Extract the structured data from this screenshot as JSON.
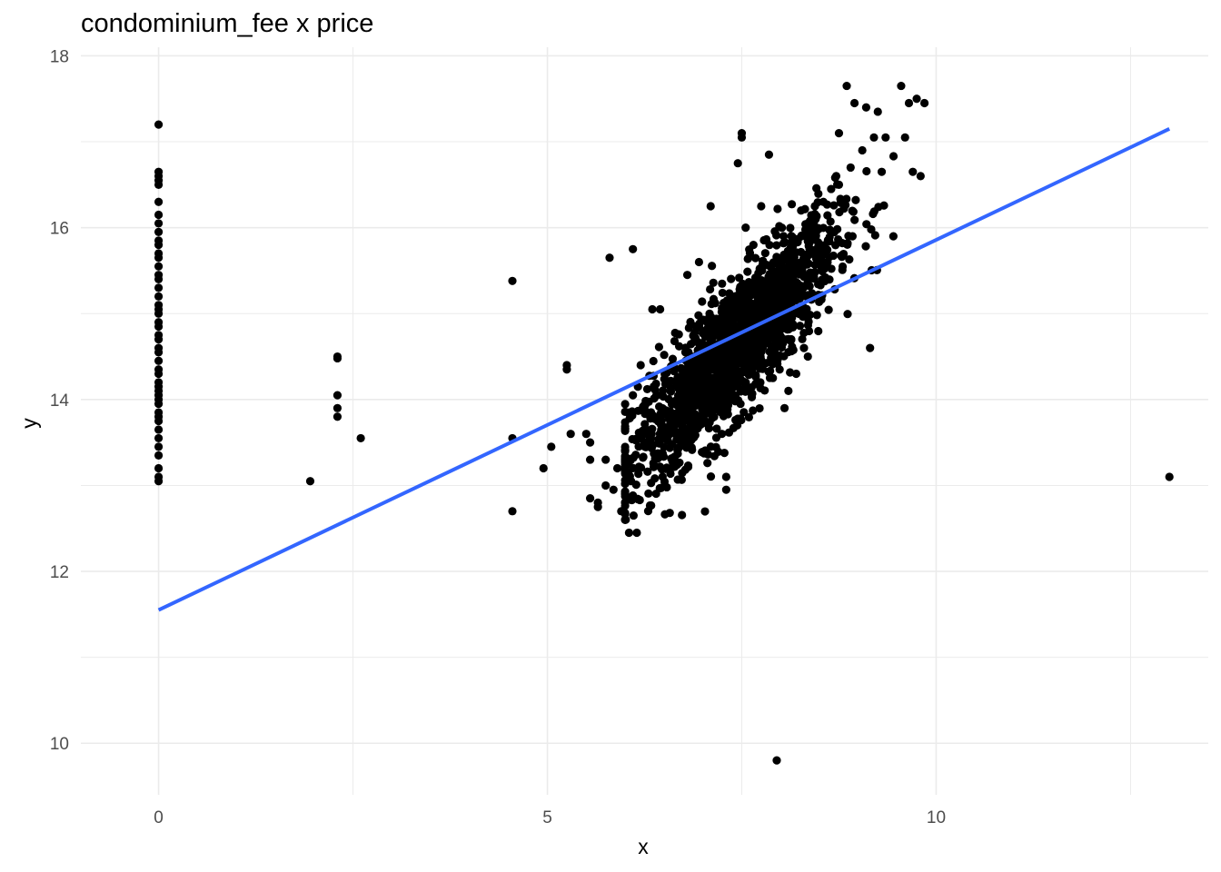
{
  "chart_data": {
    "type": "scatter",
    "title": "condominium_fee x price",
    "xlabel": "x",
    "ylabel": "y",
    "xlim": [
      -1.0,
      13.5
    ],
    "ylim": [
      9.4,
      18.1
    ],
    "x_ticks": [
      0,
      5,
      10
    ],
    "y_ticks": [
      10,
      12,
      14,
      16,
      18
    ],
    "grid": true,
    "legend": "none",
    "colors": {
      "points": "#000000",
      "fit_line": "#3366ff",
      "grid": "#ebebeb",
      "background": "#ffffff"
    },
    "fit_line": {
      "x": [
        0,
        13
      ],
      "y": [
        11.55,
        17.15
      ]
    },
    "points": [
      [
        0,
        13.05
      ],
      [
        0,
        13.1
      ],
      [
        0,
        13.2
      ],
      [
        0,
        13.35
      ],
      [
        0,
        13.45
      ],
      [
        0,
        13.55
      ],
      [
        0,
        13.65
      ],
      [
        0,
        13.75
      ],
      [
        0,
        13.8
      ],
      [
        0,
        13.85
      ],
      [
        0,
        13.95
      ],
      [
        0,
        14.0
      ],
      [
        0,
        14.05
      ],
      [
        0,
        14.1
      ],
      [
        0,
        14.15
      ],
      [
        0,
        14.2
      ],
      [
        0,
        14.3
      ],
      [
        0,
        14.35
      ],
      [
        0,
        14.45
      ],
      [
        0,
        14.55
      ],
      [
        0,
        14.6
      ],
      [
        0,
        14.7
      ],
      [
        0,
        14.75
      ],
      [
        0,
        14.85
      ],
      [
        0,
        14.9
      ],
      [
        0,
        15.0
      ],
      [
        0,
        15.05
      ],
      [
        0,
        15.1
      ],
      [
        0,
        15.2
      ],
      [
        0,
        15.3
      ],
      [
        0,
        15.4
      ],
      [
        0,
        15.45
      ],
      [
        0,
        15.55
      ],
      [
        0,
        15.65
      ],
      [
        0,
        15.7
      ],
      [
        0,
        15.8
      ],
      [
        0,
        15.85
      ],
      [
        0,
        15.95
      ],
      [
        0,
        16.05
      ],
      [
        0,
        16.15
      ],
      [
        0,
        16.3
      ],
      [
        0,
        16.5
      ],
      [
        0,
        16.55
      ],
      [
        0,
        16.6
      ],
      [
        0,
        16.65
      ],
      [
        0,
        17.2
      ],
      [
        1.95,
        13.05
      ],
      [
        2.3,
        13.8
      ],
      [
        2.3,
        13.9
      ],
      [
        2.3,
        14.05
      ],
      [
        2.3,
        14.5
      ],
      [
        2.3,
        14.48
      ],
      [
        2.6,
        13.55
      ],
      [
        4.55,
        12.7
      ],
      [
        4.55,
        13.55
      ],
      [
        4.55,
        15.38
      ],
      [
        4.95,
        13.2
      ],
      [
        5.05,
        13.45
      ],
      [
        5.25,
        14.35
      ],
      [
        5.25,
        14.4
      ],
      [
        5.3,
        13.6
      ],
      [
        5.5,
        13.6
      ],
      [
        5.55,
        12.85
      ],
      [
        5.55,
        13.3
      ],
      [
        5.55,
        13.5
      ],
      [
        5.65,
        12.75
      ],
      [
        5.65,
        12.8
      ],
      [
        5.75,
        13.0
      ],
      [
        5.75,
        13.3
      ],
      [
        5.8,
        15.65
      ],
      [
        5.85,
        12.95
      ],
      [
        5.9,
        13.2
      ],
      [
        5.95,
        12.7
      ],
      [
        6.05,
        12.45
      ],
      [
        6.15,
        12.45
      ],
      [
        6.1,
        15.75
      ],
      [
        6.1,
        14.05
      ],
      [
        6.2,
        14.4
      ],
      [
        6.35,
        15.05
      ],
      [
        6.45,
        15.05
      ],
      [
        6.8,
        14.05
      ],
      [
        6.8,
        15.45
      ],
      [
        6.95,
        15.6
      ],
      [
        7.1,
        16.25
      ],
      [
        7.3,
        12.95
      ],
      [
        7.3,
        13.1
      ],
      [
        7.45,
        16.75
      ],
      [
        7.5,
        17.05
      ],
      [
        7.5,
        17.1
      ],
      [
        7.55,
        16.0
      ],
      [
        7.65,
        15.8
      ],
      [
        7.75,
        16.25
      ],
      [
        7.85,
        16.85
      ],
      [
        7.9,
        14.25
      ],
      [
        7.95,
        9.8
      ],
      [
        8.05,
        13.9
      ],
      [
        8.1,
        14.1
      ],
      [
        8.2,
        14.3
      ],
      [
        8.3,
        14.6
      ],
      [
        8.35,
        14.5
      ],
      [
        8.4,
        16.0
      ],
      [
        8.45,
        16.1
      ],
      [
        8.55,
        16.3
      ],
      [
        8.65,
        16.45
      ],
      [
        8.75,
        16.5
      ],
      [
        8.75,
        17.1
      ],
      [
        8.85,
        17.65
      ],
      [
        8.9,
        16.7
      ],
      [
        8.95,
        17.45
      ],
      [
        9.05,
        16.9
      ],
      [
        9.1,
        17.4
      ],
      [
        9.15,
        14.6
      ],
      [
        9.2,
        17.05
      ],
      [
        9.25,
        17.35
      ],
      [
        9.3,
        16.65
      ],
      [
        9.35,
        17.05
      ],
      [
        9.45,
        15.9
      ],
      [
        9.55,
        17.65
      ],
      [
        9.6,
        17.05
      ],
      [
        9.65,
        17.45
      ],
      [
        9.7,
        16.65
      ],
      [
        9.75,
        17.5
      ],
      [
        9.8,
        16.6
      ],
      [
        9.85,
        17.45
      ],
      [
        13.0,
        13.1
      ]
    ],
    "dense_cluster": {
      "n": 1800,
      "x_mean": 7.4,
      "x_sd": 0.65,
      "x_range": [
        6.0,
        9.6
      ],
      "y_intercept": 7.55,
      "y_slope": 0.95,
      "y_sd": 0.38,
      "y_range": [
        12.6,
        17.0
      ]
    }
  }
}
